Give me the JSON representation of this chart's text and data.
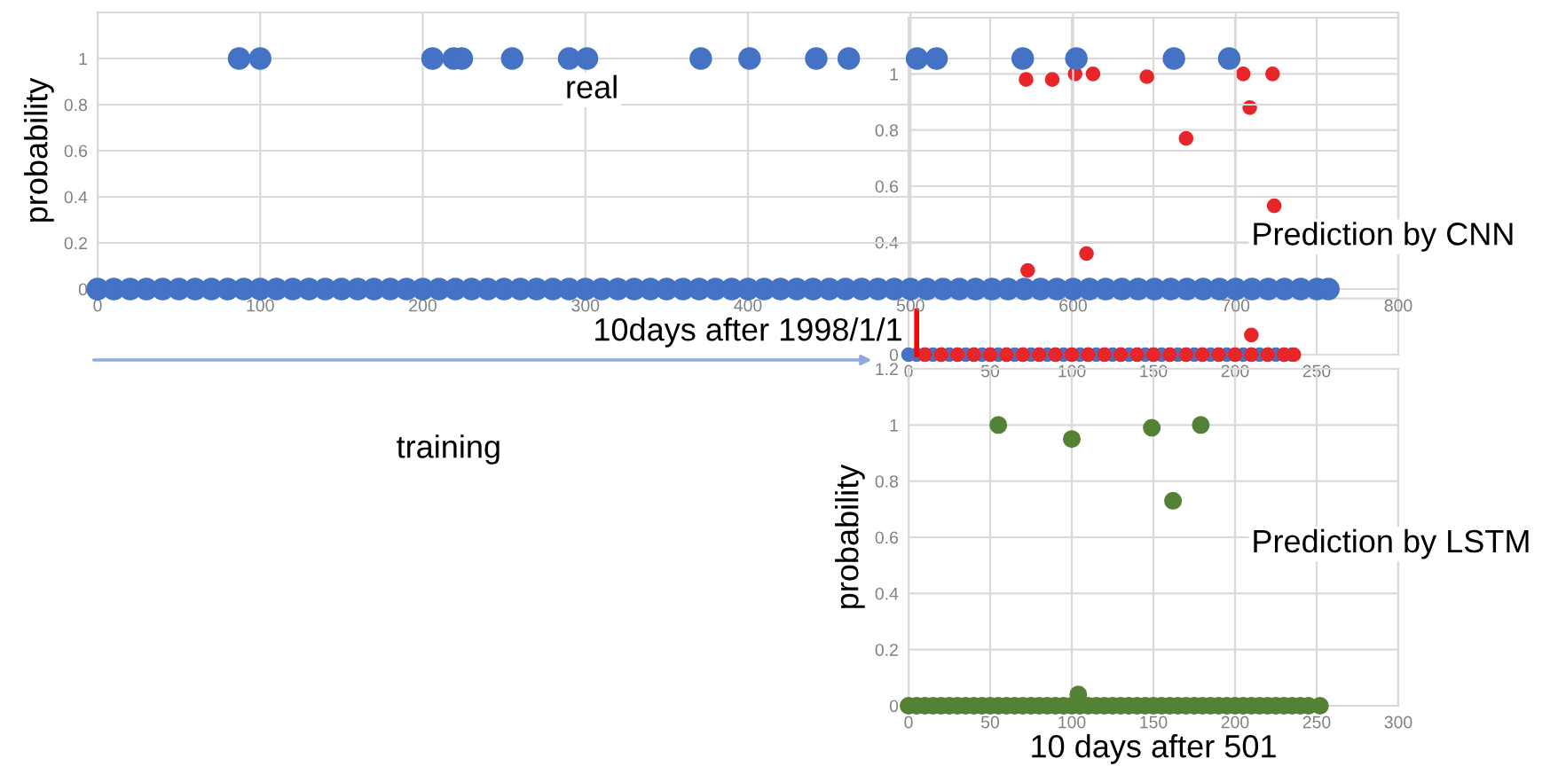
{
  "chart_data": [
    {
      "type": "scatter",
      "ylabel": "probability",
      "xlabel": "10days after 1998/1/1",
      "annotations": [
        "real",
        "training"
      ],
      "xlim": [
        0,
        800
      ],
      "xticks": [
        0,
        100,
        200,
        300,
        400,
        500,
        600,
        700,
        800
      ],
      "ylim": [
        0,
        1.2
      ],
      "yticks": [
        0,
        0.2,
        0.4,
        0.6,
        0.8,
        1
      ],
      "grid": true,
      "marker": "circle",
      "series": [
        {
          "color": "#4472c4",
          "x": [
            87,
            100,
            206,
            219,
            224,
            255,
            290,
            301,
            371,
            401,
            442,
            462,
            504,
            516,
            569,
            602,
            662,
            696
          ],
          "values": [
            1,
            1,
            1,
            1,
            1,
            1,
            1,
            1,
            1,
            1,
            1,
            1,
            1,
            1,
            1,
            1,
            1,
            1
          ]
        },
        {
          "color": "#4472c4",
          "x": [
            0,
            10,
            20,
            30,
            40,
            50,
            60,
            70,
            80,
            90,
            100,
            110,
            120,
            130,
            140,
            150,
            160,
            170,
            180,
            190,
            200,
            210,
            220,
            230,
            240,
            250,
            260,
            270,
            280,
            290,
            300,
            310,
            320,
            330,
            340,
            350,
            360,
            370,
            380,
            390,
            400,
            410,
            420,
            430,
            440,
            450,
            460,
            470,
            480,
            490,
            500,
            510,
            520,
            530,
            540,
            550,
            560,
            570,
            580,
            590,
            600,
            610,
            620,
            630,
            640,
            650,
            660,
            670,
            680,
            690,
            700,
            710,
            720,
            730,
            740,
            750,
            757
          ],
          "values": [
            0,
            0,
            0,
            0,
            0,
            0,
            0,
            0,
            0,
            0,
            0,
            0,
            0,
            0,
            0,
            0,
            0,
            0,
            0,
            0,
            0,
            0,
            0,
            0,
            0,
            0,
            0,
            0,
            0,
            0,
            0,
            0,
            0,
            0,
            0,
            0,
            0,
            0,
            0,
            0,
            0,
            0,
            0,
            0,
            0,
            0,
            0,
            0,
            0,
            0,
            0,
            0,
            0,
            0,
            0,
            0,
            0,
            0,
            0,
            0,
            0,
            0,
            0,
            0,
            0,
            0,
            0,
            0,
            0,
            0,
            0,
            0,
            0,
            0,
            0,
            0,
            0
          ]
        }
      ]
    },
    {
      "type": "scatter",
      "annotations": [
        "Prediction by CNN"
      ],
      "xlim": [
        0,
        300
      ],
      "xticks": [
        0,
        50,
        100,
        150,
        200,
        250
      ],
      "ylim": [
        0,
        1.2
      ],
      "yticks": [
        0,
        {
          "value": 0.2,
          "label": null
        },
        0.4,
        0.6,
        0.8,
        1
      ],
      "grid": true,
      "marker": "circle",
      "ref_lines": [
        {
          "axis": "x",
          "value": 5,
          "color": "#ff0000"
        }
      ],
      "series": [
        {
          "color": "#4472c4",
          "x": [
            0,
            5,
            10,
            15,
            20,
            25,
            30,
            35,
            40,
            45,
            50,
            55,
            60,
            65,
            70,
            75,
            80,
            85,
            90,
            95,
            100,
            105,
            110,
            115,
            120,
            125,
            130,
            135,
            140,
            145,
            150,
            155,
            160,
            165,
            170,
            175,
            180,
            185,
            190,
            195,
            200,
            205,
            210,
            215,
            220,
            225,
            230,
            235
          ],
          "values": [
            0,
            0,
            0,
            0,
            0,
            0,
            0,
            0,
            0,
            0,
            0,
            0,
            0,
            0,
            0,
            0,
            0,
            0,
            0,
            0,
            0,
            0,
            0,
            0,
            0,
            0,
            0,
            0,
            0,
            0,
            0,
            0,
            0,
            0,
            0,
            0,
            0,
            0,
            0,
            0,
            0,
            0,
            0,
            0,
            0,
            0,
            0,
            0
          ]
        },
        {
          "color": "#e8262a",
          "x": [
            72,
            88,
            102,
            113,
            146,
            170,
            205,
            209,
            223,
            224,
            73,
            109,
            210,
            10,
            20,
            30,
            40,
            50,
            60,
            70,
            80,
            90,
            100,
            110,
            120,
            130,
            140,
            150,
            160,
            170,
            180,
            190,
            200,
            210,
            220,
            230,
            236
          ],
          "values": [
            0.98,
            0.98,
            1,
            1,
            0.99,
            0.77,
            1,
            0.88,
            1,
            0.53,
            0.3,
            0.36,
            0.07,
            0,
            0,
            0,
            0,
            0,
            0,
            0,
            0,
            0,
            0,
            0,
            0,
            0,
            0,
            0,
            0,
            0,
            0,
            0,
            0,
            0,
            0,
            0,
            0
          ]
        }
      ]
    },
    {
      "type": "scatter",
      "annotations": [
        "Prediction by LSTM"
      ],
      "ylabel": "probability",
      "xlabel": "10 days after 501",
      "xlim": [
        0,
        300
      ],
      "xticks": [
        0,
        50,
        100,
        150,
        200,
        250,
        300
      ],
      "ylim": [
        0,
        1.2
      ],
      "yticks": [
        0,
        0.2,
        0.4,
        0.6,
        0.8,
        1,
        1.2
      ],
      "grid": true,
      "marker": "circle",
      "series": [
        {
          "color": "#548235",
          "x": [
            55,
            100,
            149,
            179,
            162,
            104,
            0,
            5,
            10,
            15,
            20,
            25,
            30,
            35,
            40,
            45,
            50,
            55,
            60,
            65,
            70,
            75,
            80,
            85,
            90,
            95,
            100,
            105,
            110,
            115,
            120,
            125,
            130,
            135,
            140,
            145,
            150,
            155,
            160,
            165,
            170,
            175,
            180,
            185,
            190,
            195,
            200,
            205,
            210,
            215,
            220,
            225,
            230,
            235,
            240,
            245,
            252
          ],
          "values": [
            1,
            0.95,
            0.99,
            1,
            0.73,
            0.04,
            0,
            0,
            0,
            0,
            0,
            0,
            0,
            0,
            0,
            0,
            0,
            0,
            0,
            0,
            0,
            0,
            0,
            0,
            0,
            0,
            0,
            0,
            0,
            0,
            0,
            0,
            0,
            0,
            0,
            0,
            0,
            0,
            0,
            0,
            0,
            0,
            0,
            0,
            0,
            0,
            0,
            0,
            0,
            0,
            0,
            0,
            0,
            0,
            0,
            0,
            0
          ]
        }
      ]
    }
  ]
}
